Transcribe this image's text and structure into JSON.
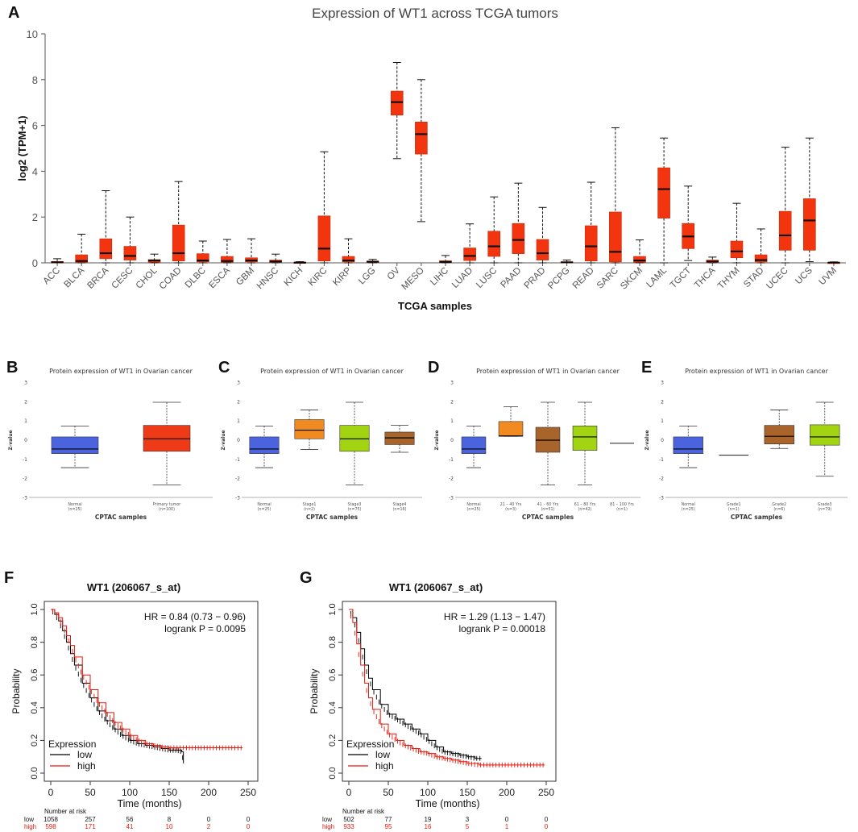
{
  "colors": {
    "tcga_box": "#f2350f",
    "normal": "#4b64dd",
    "tumor": "#ee3a17",
    "stage1": "#f18a21",
    "stage3": "#a3d412",
    "stage4": "#a8642b",
    "grade1": "#a8642b",
    "grade2": "#a8642b",
    "grade3": "#a3d412",
    "age21": "#f18a21",
    "age41": "#a8642b",
    "age61": "#a3d412",
    "km_low": "#000000",
    "km_high": "#e8170c"
  },
  "panel_labels": {
    "a": "A",
    "b": "B",
    "c": "C",
    "d": "D",
    "e": "E",
    "f": "F",
    "g": "G"
  },
  "chart_data": [
    {
      "id": "A",
      "type": "box",
      "title": "Expression of WT1 across TCGA tumors",
      "xlabel": "TCGA samples",
      "ylabel": "log2 (TPM+1)",
      "ylim": [
        0,
        10
      ],
      "yticks": [
        "0",
        "2",
        "4",
        "6",
        "8",
        "10"
      ],
      "categories": [
        "ACC",
        "BLCA",
        "BRCA",
        "CESC",
        "CHOL",
        "COAD",
        "DLBC",
        "ESCA",
        "GBM",
        "HNSC",
        "KICH",
        "KIRC",
        "KIRP",
        "LGG",
        "OV",
        "MESO",
        "LIHC",
        "LUAD",
        "LUSC",
        "PAAD",
        "PRAD",
        "PCPG",
        "READ",
        "SARC",
        "SKCM",
        "LAML",
        "TGCT",
        "THCA",
        "THYM",
        "STAD",
        "UCEC",
        "UCS",
        "UVM"
      ],
      "boxes": [
        [
          0,
          0,
          0.02,
          0.06,
          0.18
        ],
        [
          0,
          0.02,
          0.08,
          0.35,
          1.25
        ],
        [
          0,
          0.18,
          0.42,
          1.05,
          3.15
        ],
        [
          0,
          0.12,
          0.3,
          0.72,
          2.0
        ],
        [
          0,
          0.03,
          0.1,
          0.14,
          0.38
        ],
        [
          0,
          0.08,
          0.42,
          1.65,
          3.55
        ],
        [
          0,
          0.04,
          0.1,
          0.4,
          0.95
        ],
        [
          0,
          0.03,
          0.08,
          0.28,
          1.02
        ],
        [
          0,
          0.04,
          0.1,
          0.22,
          1.05
        ],
        [
          0,
          0.02,
          0.06,
          0.12,
          0.38
        ],
        [
          0,
          0,
          0.01,
          0.03,
          0.05
        ],
        [
          0,
          0.08,
          0.62,
          2.05,
          4.85
        ],
        [
          0,
          0.04,
          0.1,
          0.28,
          1.05
        ],
        [
          0,
          0.02,
          0.05,
          0.08,
          0.15
        ],
        [
          4.55,
          6.45,
          7.02,
          7.5,
          8.75
        ],
        [
          1.8,
          4.75,
          5.62,
          6.15,
          8.0
        ],
        [
          0,
          0.01,
          0.04,
          0.09,
          0.32
        ],
        [
          0,
          0.1,
          0.3,
          0.65,
          1.7
        ],
        [
          0,
          0.28,
          0.72,
          1.38,
          2.88
        ],
        [
          0,
          0.4,
          1.0,
          1.72,
          3.48
        ],
        [
          0,
          0.12,
          0.42,
          1.02,
          2.42
        ],
        [
          0,
          0,
          0.02,
          0.05,
          0.12
        ],
        [
          0,
          0.08,
          0.72,
          1.62,
          3.52
        ],
        [
          0,
          0.04,
          0.48,
          2.22,
          5.9
        ],
        [
          0,
          0.03,
          0.1,
          0.28,
          1.0
        ],
        [
          0,
          1.95,
          3.22,
          4.15,
          5.45
        ],
        [
          0.1,
          0.62,
          1.15,
          1.72,
          3.35
        ],
        [
          0,
          0.02,
          0.06,
          0.12,
          0.25
        ],
        [
          0,
          0.22,
          0.5,
          0.95,
          2.6
        ],
        [
          0,
          0.04,
          0.12,
          0.35,
          1.48
        ],
        [
          0,
          0.55,
          1.2,
          2.25,
          5.05
        ],
        [
          0.05,
          0.55,
          1.85,
          2.8,
          5.45
        ],
        [
          0,
          0,
          0.01,
          0.02,
          0.04
        ]
      ]
    },
    {
      "id": "B",
      "type": "box",
      "title": "Protein expression of WT1 in Ovarian cancer",
      "xlabel": "CPTAC samples",
      "ylabel": "Z-value",
      "ylim": [
        -3,
        3
      ],
      "yticks": [
        "-3",
        "-2",
        "-1",
        "0",
        "1",
        "2",
        "3"
      ],
      "categories": [
        "Normal",
        "Primary tumor"
      ],
      "counts": [
        "(n=25)",
        "(n=100)"
      ],
      "fills": [
        "normal",
        "tumor"
      ],
      "boxes": [
        [
          -1.45,
          -0.72,
          -0.48,
          0.15,
          0.72
        ],
        [
          -2.35,
          -0.6,
          0.05,
          0.75,
          1.95
        ]
      ]
    },
    {
      "id": "C",
      "type": "box",
      "title": "Protein expression of WT1 in Ovarian cancer",
      "xlabel": "CPTAC samples",
      "ylabel": "Z-value",
      "ylim": [
        -3,
        3
      ],
      "yticks": [
        "-3",
        "-2",
        "-1",
        "0",
        "1",
        "2",
        "3"
      ],
      "categories": [
        "Normal",
        "Stage1",
        "Stage3",
        "Stage4"
      ],
      "counts": [
        "(n=25)",
        "(n=2)",
        "(n=75)",
        "(n=16)"
      ],
      "fills": [
        "normal",
        "stage1",
        "stage3",
        "stage4"
      ],
      "boxes": [
        [
          -1.45,
          -0.72,
          -0.48,
          0.15,
          0.72
        ],
        [
          -0.5,
          0.05,
          0.5,
          1.05,
          1.55
        ],
        [
          -2.35,
          -0.6,
          0.05,
          0.75,
          1.95
        ],
        [
          -0.65,
          -0.25,
          0.1,
          0.4,
          0.75
        ]
      ]
    },
    {
      "id": "D",
      "type": "box",
      "title": "Protein expression of WT1 in Ovarian cancer",
      "xlabel": "CPTAC samples",
      "ylabel": "Z-value",
      "ylim": [
        -3,
        3
      ],
      "yticks": [
        "-3",
        "-2",
        "-1",
        "0",
        "1",
        "2",
        "3"
      ],
      "categories": [
        "Normal",
        "21 – 40 Yrs",
        "41 – 60 Yrs",
        "61 – 80 Yrs",
        "81 – 100 Yrs"
      ],
      "counts": [
        "(n=25)",
        "(n=3)",
        "(n=51)",
        "(n=42)",
        "(n=1)"
      ],
      "fills": [
        "normal",
        "age21",
        "age41",
        "age61",
        "age41"
      ],
      "boxes": [
        [
          -1.45,
          -0.72,
          -0.48,
          0.15,
          0.72
        ],
        [
          0.18,
          0.18,
          0.2,
          0.95,
          1.72
        ],
        [
          -2.35,
          -0.65,
          -0.02,
          0.65,
          1.95
        ],
        [
          -2.35,
          -0.55,
          0.15,
          0.72,
          1.95
        ],
        [
          -0.18,
          -0.18,
          -0.18,
          -0.18,
          -0.18
        ]
      ]
    },
    {
      "id": "E",
      "type": "box",
      "title": "Protein expression of WT1 in Ovarian cancer",
      "xlabel": "CPTAC samples",
      "ylabel": "Z-value",
      "ylim": [
        -3,
        3
      ],
      "yticks": [
        "-3",
        "-2",
        "-1",
        "0",
        "1",
        "2",
        "3"
      ],
      "categories": [
        "Normal",
        "Grade1",
        "Grade2",
        "Grade3"
      ],
      "counts": [
        "(n=25)",
        "(n=1)",
        "(n=6)",
        "(n=79)"
      ],
      "fills": [
        "normal",
        "grade1",
        "grade2",
        "grade3"
      ],
      "boxes": [
        [
          -1.45,
          -0.72,
          -0.48,
          0.15,
          0.72
        ],
        [
          -0.8,
          -0.8,
          -0.8,
          -0.8,
          -0.8
        ],
        [
          -0.45,
          -0.22,
          0.18,
          0.75,
          1.55
        ],
        [
          -1.9,
          -0.28,
          0.15,
          0.78,
          1.95
        ]
      ]
    },
    {
      "id": "F",
      "type": "line",
      "title": "WT1 (206067_s_at)",
      "xlabel": "Time (months)",
      "ylabel": "Probability",
      "xlim": [
        0,
        250
      ],
      "ylim": [
        0,
        1
      ],
      "xticks": [
        "0",
        "50",
        "100",
        "150",
        "200",
        "250"
      ],
      "yticks": [
        "0.0",
        "0.2",
        "0.4",
        "0.6",
        "0.8",
        "1.0"
      ],
      "hr_text": "HR = 0.84 (0.73 − 0.96)",
      "p_text": "logrank P = 0.0095",
      "legend_title": "Expression",
      "legend": [
        "low",
        "high"
      ],
      "risk_title": "Number at risk",
      "risk_times": [
        0,
        50,
        100,
        150,
        200,
        250
      ],
      "risk_rows": [
        {
          "label": "low",
          "values": [
            "1058",
            "257",
            "56",
            "8",
            "0",
            "0"
          ]
        },
        {
          "label": "high",
          "values": [
            "598",
            "171",
            "41",
            "10",
            "2",
            "0"
          ]
        }
      ],
      "series": [
        {
          "name": "low",
          "end_x": 168,
          "x": [
            0,
            5,
            10,
            15,
            20,
            25,
            30,
            40,
            50,
            60,
            70,
            80,
            90,
            100,
            110,
            120,
            130,
            140,
            150,
            160,
            166,
            168
          ],
          "y": [
            1,
            0.97,
            0.93,
            0.87,
            0.8,
            0.73,
            0.66,
            0.55,
            0.46,
            0.38,
            0.32,
            0.27,
            0.23,
            0.2,
            0.18,
            0.17,
            0.16,
            0.15,
            0.14,
            0.14,
            0.13,
            0.06
          ]
        },
        {
          "name": "high",
          "end_x": 243,
          "x": [
            0,
            5,
            10,
            15,
            20,
            25,
            30,
            40,
            50,
            60,
            70,
            80,
            90,
            100,
            110,
            120,
            130,
            140,
            150,
            170,
            200,
            243
          ],
          "y": [
            1,
            0.98,
            0.95,
            0.9,
            0.84,
            0.78,
            0.71,
            0.6,
            0.51,
            0.43,
            0.37,
            0.31,
            0.27,
            0.23,
            0.2,
            0.18,
            0.17,
            0.16,
            0.155,
            0.155,
            0.155,
            0.155
          ]
        }
      ]
    },
    {
      "id": "G",
      "type": "line",
      "title": "WT1 (206067_s_at)",
      "xlabel": "Time (months)",
      "ylabel": "Probability",
      "xlim": [
        0,
        250
      ],
      "ylim": [
        0,
        1
      ],
      "xticks": [
        "0",
        "50",
        "100",
        "150",
        "200",
        "250"
      ],
      "yticks": [
        "0.0",
        "0.2",
        "0.4",
        "0.6",
        "0.8",
        "1.0"
      ],
      "hr_text": "HR = 1.29 (1.13 − 1.47)",
      "p_text": "logrank P = 0.00018",
      "legend_title": "Expression",
      "legend": [
        "low",
        "high"
      ],
      "risk_title": "Number at risk",
      "risk_times": [
        0,
        50,
        100,
        150,
        200,
        250
      ],
      "risk_rows": [
        {
          "label": "low",
          "values": [
            "502",
            "77",
            "19",
            "3",
            "0",
            "0"
          ]
        },
        {
          "label": "high",
          "values": [
            "933",
            "95",
            "16",
            "5",
            "1",
            "0"
          ]
        }
      ],
      "series": [
        {
          "name": "low",
          "end_x": 168,
          "x": [
            0,
            5,
            10,
            15,
            20,
            25,
            30,
            40,
            50,
            60,
            70,
            80,
            90,
            100,
            110,
            120,
            130,
            140,
            150,
            160,
            168
          ],
          "y": [
            1,
            0.95,
            0.86,
            0.76,
            0.66,
            0.58,
            0.51,
            0.42,
            0.36,
            0.33,
            0.3,
            0.27,
            0.24,
            0.2,
            0.16,
            0.13,
            0.12,
            0.11,
            0.1,
            0.09,
            0.09
          ]
        },
        {
          "name": "high",
          "end_x": 248,
          "x": [
            0,
            5,
            10,
            15,
            20,
            25,
            30,
            40,
            50,
            60,
            70,
            80,
            90,
            100,
            110,
            120,
            130,
            140,
            150,
            165,
            200,
            248
          ],
          "y": [
            1,
            0.92,
            0.79,
            0.66,
            0.55,
            0.46,
            0.39,
            0.3,
            0.24,
            0.2,
            0.17,
            0.15,
            0.13,
            0.12,
            0.1,
            0.09,
            0.08,
            0.07,
            0.06,
            0.05,
            0.05,
            0.05
          ]
        }
      ]
    }
  ]
}
